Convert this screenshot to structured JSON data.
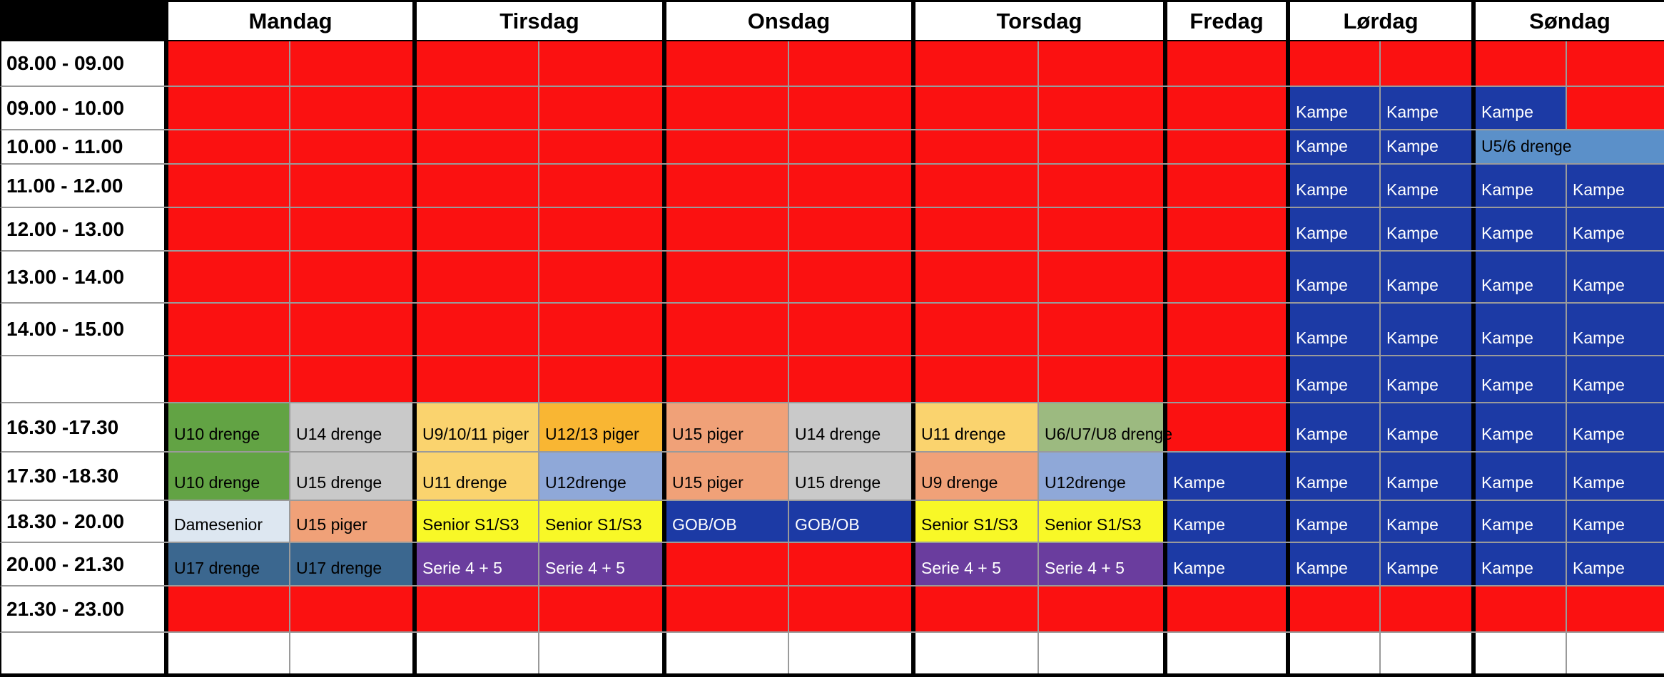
{
  "palette": {
    "red": "#fb1111",
    "blue": "#1c3aa5",
    "lightblue": "#5b90c9",
    "green": "#62a344",
    "lightgreen": "#9cba80",
    "gray": "#c9c9c9",
    "lightorange": "#fad36e",
    "orange": "#f9b633",
    "bluegray": "#8fa8d8",
    "salmon": "#f0a178",
    "yellow": "#f8f827",
    "purple": "#6a3d9e",
    "steelblue": "#3b678f",
    "paleblue": "#dde7f1",
    "white": "#ffffff",
    "grid_line": "#9a9a9a",
    "divider": "#000000",
    "text_dark": "#000000",
    "text_light": "#ffffff"
  },
  "schedule": {
    "days": [
      {
        "label": "Mandag",
        "cols": 2
      },
      {
        "label": "Tirsdag",
        "cols": 2
      },
      {
        "label": "Onsdag",
        "cols": 2
      },
      {
        "label": "Torsdag",
        "cols": 2
      },
      {
        "label": "Fredag",
        "cols": 1
      },
      {
        "label": "Lørdag",
        "cols": 2
      },
      {
        "label": "Søndag",
        "cols": 2
      }
    ],
    "rows": [
      {
        "time": "08.00 - 09.00",
        "cells": [
          {
            "t": "",
            "c": "red"
          },
          {
            "t": "",
            "c": "red"
          },
          {
            "t": "",
            "c": "red"
          },
          {
            "t": "",
            "c": "red"
          },
          {
            "t": "",
            "c": "red"
          },
          {
            "t": "",
            "c": "red"
          },
          {
            "t": "",
            "c": "red"
          },
          {
            "t": "",
            "c": "red"
          },
          {
            "t": "",
            "c": "red"
          },
          {
            "t": "",
            "c": "red"
          },
          {
            "t": "",
            "c": "red"
          },
          {
            "t": "",
            "c": "red"
          },
          {
            "t": "",
            "c": "red"
          }
        ]
      },
      {
        "time": "09.00 - 10.00",
        "cells": [
          {
            "t": "",
            "c": "red"
          },
          {
            "t": "",
            "c": "red"
          },
          {
            "t": "",
            "c": "red"
          },
          {
            "t": "",
            "c": "red"
          },
          {
            "t": "",
            "c": "red"
          },
          {
            "t": "",
            "c": "red"
          },
          {
            "t": "",
            "c": "red"
          },
          {
            "t": "",
            "c": "red"
          },
          {
            "t": "",
            "c": "red"
          },
          {
            "t": "Kampe",
            "c": "blue",
            "f": "w"
          },
          {
            "t": "Kampe",
            "c": "blue",
            "f": "w"
          },
          {
            "t": "Kampe",
            "c": "blue",
            "f": "w"
          },
          {
            "t": "",
            "c": "red"
          }
        ]
      },
      {
        "time": "10.00 - 11.00",
        "cells": [
          {
            "t": "",
            "c": "red"
          },
          {
            "t": "",
            "c": "red"
          },
          {
            "t": "",
            "c": "red"
          },
          {
            "t": "",
            "c": "red"
          },
          {
            "t": "",
            "c": "red"
          },
          {
            "t": "",
            "c": "red"
          },
          {
            "t": "",
            "c": "red"
          },
          {
            "t": "",
            "c": "red"
          },
          {
            "t": "",
            "c": "red"
          },
          {
            "t": "Kampe",
            "c": "blue",
            "f": "w"
          },
          {
            "t": "Kampe",
            "c": "blue",
            "f": "w"
          },
          {
            "t": "U5/6 drenge",
            "c": "lightblue",
            "s": 2
          }
        ]
      },
      {
        "time": "11.00 - 12.00",
        "cells": [
          {
            "t": "",
            "c": "red"
          },
          {
            "t": "",
            "c": "red"
          },
          {
            "t": "",
            "c": "red"
          },
          {
            "t": "",
            "c": "red"
          },
          {
            "t": "",
            "c": "red"
          },
          {
            "t": "",
            "c": "red"
          },
          {
            "t": "",
            "c": "red"
          },
          {
            "t": "",
            "c": "red"
          },
          {
            "t": "",
            "c": "red"
          },
          {
            "t": "Kampe",
            "c": "blue",
            "f": "w"
          },
          {
            "t": "Kampe",
            "c": "blue",
            "f": "w"
          },
          {
            "t": "Kampe",
            "c": "blue",
            "f": "w"
          },
          {
            "t": "Kampe",
            "c": "blue",
            "f": "w"
          }
        ]
      },
      {
        "time": "12.00 - 13.00",
        "cells": [
          {
            "t": "",
            "c": "red"
          },
          {
            "t": "",
            "c": "red"
          },
          {
            "t": "",
            "c": "red"
          },
          {
            "t": "",
            "c": "red"
          },
          {
            "t": "",
            "c": "red"
          },
          {
            "t": "",
            "c": "red"
          },
          {
            "t": "",
            "c": "red"
          },
          {
            "t": "",
            "c": "red"
          },
          {
            "t": "",
            "c": "red"
          },
          {
            "t": "Kampe",
            "c": "blue",
            "f": "w"
          },
          {
            "t": "Kampe",
            "c": "blue",
            "f": "w"
          },
          {
            "t": "Kampe",
            "c": "blue",
            "f": "w"
          },
          {
            "t": "Kampe",
            "c": "blue",
            "f": "w"
          }
        ]
      },
      {
        "time": "13.00 - 14.00",
        "cells": [
          {
            "t": "",
            "c": "red"
          },
          {
            "t": "",
            "c": "red"
          },
          {
            "t": "",
            "c": "red"
          },
          {
            "t": "",
            "c": "red"
          },
          {
            "t": "",
            "c": "red"
          },
          {
            "t": "",
            "c": "red"
          },
          {
            "t": "",
            "c": "red"
          },
          {
            "t": "",
            "c": "red"
          },
          {
            "t": "",
            "c": "red"
          },
          {
            "t": "Kampe",
            "c": "blue",
            "f": "w"
          },
          {
            "t": "Kampe",
            "c": "blue",
            "f": "w"
          },
          {
            "t": "Kampe",
            "c": "blue",
            "f": "w"
          },
          {
            "t": "Kampe",
            "c": "blue",
            "f": "w"
          }
        ]
      },
      {
        "time": "14.00 - 15.00",
        "cells": [
          {
            "t": "",
            "c": "red"
          },
          {
            "t": "",
            "c": "red"
          },
          {
            "t": "",
            "c": "red"
          },
          {
            "t": "",
            "c": "red"
          },
          {
            "t": "",
            "c": "red"
          },
          {
            "t": "",
            "c": "red"
          },
          {
            "t": "",
            "c": "red"
          },
          {
            "t": "",
            "c": "red"
          },
          {
            "t": "",
            "c": "red"
          },
          {
            "t": "Kampe",
            "c": "blue",
            "f": "w"
          },
          {
            "t": "Kampe",
            "c": "blue",
            "f": "w"
          },
          {
            "t": "Kampe",
            "c": "blue",
            "f": "w"
          },
          {
            "t": "Kampe",
            "c": "blue",
            "f": "w"
          }
        ]
      },
      {
        "time": "",
        "cells": [
          {
            "t": "",
            "c": "red"
          },
          {
            "t": "",
            "c": "red"
          },
          {
            "t": "",
            "c": "red"
          },
          {
            "t": "",
            "c": "red"
          },
          {
            "t": "",
            "c": "red"
          },
          {
            "t": "",
            "c": "red"
          },
          {
            "t": "",
            "c": "red"
          },
          {
            "t": "",
            "c": "red"
          },
          {
            "t": "",
            "c": "red"
          },
          {
            "t": "Kampe",
            "c": "blue",
            "f": "w"
          },
          {
            "t": "Kampe",
            "c": "blue",
            "f": "w"
          },
          {
            "t": "Kampe",
            "c": "blue",
            "f": "w"
          },
          {
            "t": "Kampe",
            "c": "blue",
            "f": "w"
          }
        ]
      },
      {
        "time": "16.30 -17.30",
        "cells": [
          {
            "t": "U10 drenge",
            "c": "green"
          },
          {
            "t": "U14 drenge",
            "c": "gray"
          },
          {
            "t": "U9/10/11 piger",
            "c": "lightorange"
          },
          {
            "t": "U12/13 piger",
            "c": "orange"
          },
          {
            "t": "U15 piger",
            "c": "salmon"
          },
          {
            "t": "U14 drenge",
            "c": "gray"
          },
          {
            "t": "U11 drenge",
            "c": "lightorange"
          },
          {
            "t": "U6/U7/U8 drenge",
            "c": "lightgreen"
          },
          {
            "t": "",
            "c": "red"
          },
          {
            "t": "Kampe",
            "c": "blue",
            "f": "w"
          },
          {
            "t": "Kampe",
            "c": "blue",
            "f": "w"
          },
          {
            "t": "Kampe",
            "c": "blue",
            "f": "w"
          },
          {
            "t": "Kampe",
            "c": "blue",
            "f": "w"
          }
        ]
      },
      {
        "time": "17.30 -18.30",
        "cells": [
          {
            "t": "U10 drenge",
            "c": "green"
          },
          {
            "t": "U15 drenge",
            "c": "gray"
          },
          {
            "t": "U11 drenge",
            "c": "lightorange"
          },
          {
            "t": "U12drenge",
            "c": "bluegray"
          },
          {
            "t": "U15 piger",
            "c": "salmon"
          },
          {
            "t": "U15 drenge",
            "c": "gray"
          },
          {
            "t": "U9 drenge",
            "c": "salmon"
          },
          {
            "t": "U12drenge",
            "c": "bluegray"
          },
          {
            "t": "Kampe",
            "c": "blue",
            "f": "w"
          },
          {
            "t": "Kampe",
            "c": "blue",
            "f": "w"
          },
          {
            "t": "Kampe",
            "c": "blue",
            "f": "w"
          },
          {
            "t": "Kampe",
            "c": "blue",
            "f": "w"
          },
          {
            "t": "Kampe",
            "c": "blue",
            "f": "w"
          }
        ]
      },
      {
        "time": "18.30 - 20.00",
        "cells": [
          {
            "t": "Damesenior",
            "c": "paleblue"
          },
          {
            "t": "U15 piger",
            "c": "salmon"
          },
          {
            "t": "Senior S1/S3",
            "c": "yellow"
          },
          {
            "t": "Senior S1/S3",
            "c": "yellow"
          },
          {
            "t": "GOB/OB",
            "c": "blue",
            "f": "w"
          },
          {
            "t": "GOB/OB",
            "c": "blue",
            "f": "w"
          },
          {
            "t": "Senior S1/S3",
            "c": "yellow"
          },
          {
            "t": "Senior S1/S3",
            "c": "yellow"
          },
          {
            "t": "Kampe",
            "c": "blue",
            "f": "w"
          },
          {
            "t": "Kampe",
            "c": "blue",
            "f": "w"
          },
          {
            "t": "Kampe",
            "c": "blue",
            "f": "w"
          },
          {
            "t": "Kampe",
            "c": "blue",
            "f": "w"
          },
          {
            "t": "Kampe",
            "c": "blue",
            "f": "w"
          }
        ]
      },
      {
        "time": "20.00 - 21.30",
        "cells": [
          {
            "t": "U17 drenge",
            "c": "steelblue"
          },
          {
            "t": "U17 drenge",
            "c": "steelblue"
          },
          {
            "t": "Serie 4 + 5",
            "c": "purple",
            "f": "w"
          },
          {
            "t": "Serie 4 + 5",
            "c": "purple",
            "f": "w"
          },
          {
            "t": "",
            "c": "red"
          },
          {
            "t": "",
            "c": "red"
          },
          {
            "t": "Serie 4 + 5",
            "c": "purple",
            "f": "w"
          },
          {
            "t": "Serie 4 + 5",
            "c": "purple",
            "f": "w"
          },
          {
            "t": "Kampe",
            "c": "blue",
            "f": "w"
          },
          {
            "t": "Kampe",
            "c": "blue",
            "f": "w"
          },
          {
            "t": "Kampe",
            "c": "blue",
            "f": "w"
          },
          {
            "t": "Kampe",
            "c": "blue",
            "f": "w"
          },
          {
            "t": "Kampe",
            "c": "blue",
            "f": "w"
          }
        ]
      },
      {
        "time": "21.30 - 23.00",
        "cells": [
          {
            "t": "",
            "c": "red"
          },
          {
            "t": "",
            "c": "red"
          },
          {
            "t": "",
            "c": "red"
          },
          {
            "t": "",
            "c": "red"
          },
          {
            "t": "",
            "c": "red"
          },
          {
            "t": "",
            "c": "red"
          },
          {
            "t": "",
            "c": "red"
          },
          {
            "t": "",
            "c": "red"
          },
          {
            "t": "",
            "c": "red"
          },
          {
            "t": "",
            "c": "red"
          },
          {
            "t": "",
            "c": "red"
          },
          {
            "t": "",
            "c": "red"
          },
          {
            "t": "",
            "c": "red"
          }
        ]
      },
      {
        "time": "",
        "cells": [
          {
            "t": "",
            "c": "white"
          },
          {
            "t": "",
            "c": "white"
          },
          {
            "t": "",
            "c": "white"
          },
          {
            "t": "",
            "c": "white"
          },
          {
            "t": "",
            "c": "white"
          },
          {
            "t": "",
            "c": "white"
          },
          {
            "t": "",
            "c": "white"
          },
          {
            "t": "",
            "c": "white"
          },
          {
            "t": "",
            "c": "white"
          },
          {
            "t": "",
            "c": "white"
          },
          {
            "t": "",
            "c": "white"
          },
          {
            "t": "",
            "c": "white"
          },
          {
            "t": "",
            "c": "white"
          }
        ]
      }
    ]
  }
}
